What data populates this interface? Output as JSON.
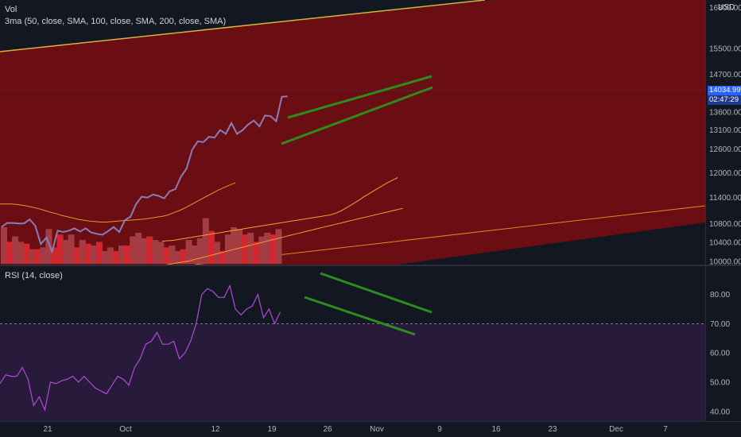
{
  "main_legend": {
    "vol": "Vol",
    "ma": "3ma (50, close, SMA, 100, close, SMA, 200, close, SMA)"
  },
  "rsi_legend": "RSI (14, close)",
  "currency": "USD",
  "current_price": "14034.99",
  "countdown": "02:47:29",
  "colors": {
    "background": "#131722",
    "price_fill": "#6b0e13",
    "rsi_fill": "#281a3a",
    "price_line": "#8a7cb8",
    "rsi_line": "#b04bd8",
    "trend": "#2e8b1d",
    "volume_up": "#a33c43",
    "volume_down": "#d3272f",
    "ma_orange": "#f0a030",
    "accent": "#2962ff"
  },
  "chart_data": [
    {
      "type": "line",
      "x_ticks": [
        "21",
        "Oct",
        "12",
        "19",
        "26",
        "Nov",
        "9",
        "16",
        "23",
        "Dec",
        "7"
      ],
      "y_ticks": [
        10000,
        10400,
        10800,
        11400,
        12000,
        12600,
        13100,
        13600,
        14700,
        15500,
        16800
      ],
      "y_tick_labels": [
        "10000.00",
        "10400.00",
        "10800.00",
        "11400.00",
        "12000.00",
        "12600.00",
        "13100.00",
        "13600.00",
        "14700.00",
        "15500.00",
        "16800.00"
      ],
      "ylim": [
        9980,
        16900
      ],
      "n_bars": 88,
      "series": [
        {
          "name": "close",
          "values": [
            10730,
            10820,
            10820,
            10810,
            10810,
            10900,
            10760,
            10360,
            10500,
            10200,
            10650,
            10620,
            10650,
            10700,
            10630,
            10700,
            10610,
            10580,
            10560,
            10640,
            10730,
            10620,
            10880,
            10960,
            11250,
            11420,
            11400,
            11470,
            11440,
            11380,
            11550,
            11600,
            11900,
            12100,
            12580,
            12800,
            12780,
            12920,
            12900,
            13100,
            13000,
            13290,
            13000,
            13100,
            13250,
            13360,
            13200,
            13500,
            13480,
            13340,
            14030,
            14040
          ]
        },
        {
          "name": "MA 50",
          "values": [
            11250,
            11250,
            11250,
            11240,
            11220,
            11200,
            11170,
            11140,
            11100,
            11060,
            11030,
            10990,
            10960,
            10930,
            10900,
            10880,
            10860,
            10850,
            10840,
            10840,
            10850,
            10860,
            10870,
            10880,
            10890,
            10900,
            10910,
            10930,
            10950,
            10970,
            11000,
            11050,
            11100,
            11160,
            11230,
            11300,
            11370,
            11440,
            11510,
            11580,
            11640,
            11700,
            11750
          ]
        },
        {
          "name": "MA 100",
          "values": [
            10420,
            10430,
            10440,
            10460,
            10480,
            10500,
            10520,
            10540,
            10560,
            10580,
            10600,
            10620,
            10640,
            10660,
            10680,
            10700,
            10720,
            10740,
            10760,
            10780,
            10800,
            10820,
            10840,
            10860,
            10880,
            10900,
            10920,
            10940,
            10960,
            10980,
            11000,
            11040,
            11100,
            11170,
            11250,
            11330,
            11420,
            11500,
            11580,
            11660,
            11740,
            11810,
            11880
          ]
        },
        {
          "name": "MA 200",
          "values": [
            9730,
            9750,
            9770,
            9790,
            9810,
            9830,
            9850,
            9870,
            9890,
            9910,
            9930,
            9950,
            9970,
            9990,
            10010,
            10040,
            10070,
            10100,
            10130,
            10160,
            10190,
            10220,
            10250,
            10280,
            10310,
            10340,
            10370,
            10400,
            10430,
            10460,
            10490,
            10520,
            10550,
            10580,
            10610,
            10640,
            10670,
            10700,
            10730,
            10760,
            10790,
            10820,
            10850,
            10880,
            10910,
            10940,
            10970,
            11000,
            11030,
            11060,
            11090,
            11120,
            11150
          ]
        }
      ],
      "volume": [
        1.0,
        0.6,
        0.75,
        0.6,
        0.55,
        0.4,
        0.4,
        0.45,
        0.95,
        0.45,
        0.8,
        0.65,
        0.8,
        0.45,
        0.65,
        0.55,
        0.5,
        0.6,
        0.35,
        0.45,
        0.35,
        0.5,
        0.5,
        0.75,
        0.85,
        0.7,
        0.75,
        0.65,
        0.6,
        0.45,
        0.5,
        0.35,
        0.4,
        0.65,
        0.5,
        0.7,
        1.25,
        0.9,
        0.6,
        0.35,
        0.8,
        1.0,
        0.95,
        0.8,
        0.85,
        0.6,
        0.75,
        0.85,
        0.8,
        0.95
      ],
      "volume_up": [
        1,
        0,
        1,
        1,
        0,
        1,
        0,
        1,
        1,
        0,
        0,
        1,
        1,
        0,
        1,
        0,
        1,
        0,
        1,
        1,
        0,
        1,
        0,
        1,
        1,
        1,
        0,
        1,
        1,
        0,
        1,
        1,
        0,
        1,
        1,
        1,
        1,
        0,
        1,
        0,
        1,
        1,
        1,
        0,
        1,
        0,
        1,
        1,
        0,
        1
      ]
    },
    {
      "type": "line",
      "y_ticks": [
        40,
        50,
        60,
        70,
        80
      ],
      "y_tick_labels": [
        "40.00",
        "50.00",
        "60.00",
        "70.00",
        "80.00"
      ],
      "ylim": [
        37.5,
        87.5
      ],
      "series": [
        {
          "name": "RSI",
          "values": [
            49.5,
            52.5,
            52,
            52,
            55,
            51,
            42,
            45,
            40.5,
            50,
            49.5,
            50.5,
            51,
            52,
            50,
            52,
            50,
            48,
            47,
            46,
            49,
            52,
            51,
            49,
            55,
            58,
            63,
            64,
            67,
            63,
            63,
            64,
            58,
            60,
            64,
            70,
            80,
            82,
            81,
            79,
            79,
            83,
            75,
            73,
            75,
            76,
            80,
            72,
            75,
            70,
            74
          ]
        }
      ]
    }
  ]
}
